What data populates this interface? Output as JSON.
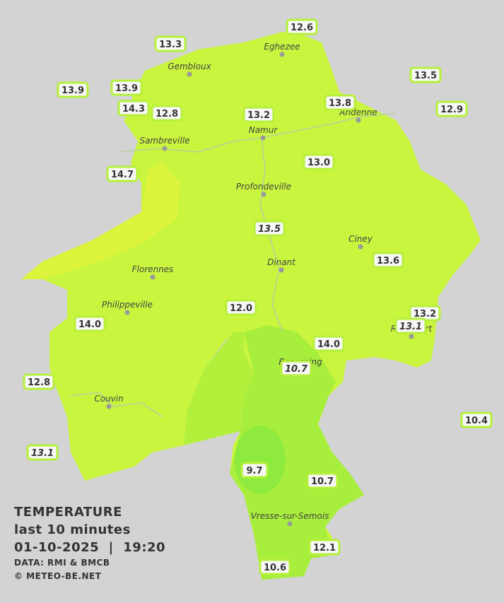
{
  "towns": [
    {
      "name": "Eghezee"
    },
    {
      "name": "Gembloux"
    },
    {
      "name": "Andenne"
    },
    {
      "name": "Namur"
    },
    {
      "name": "Sambreville"
    },
    {
      "name": "Profondeville"
    },
    {
      "name": "Ciney"
    },
    {
      "name": "Dinant"
    },
    {
      "name": "Florennes"
    },
    {
      "name": "Philippeville"
    },
    {
      "name": "Rochefort"
    },
    {
      "name": "Beauraing"
    },
    {
      "name": "Couvin"
    },
    {
      "name": "Vresse-sur-Semois"
    }
  ],
  "stations": [
    {
      "label": "12.6"
    },
    {
      "label": "13.3"
    },
    {
      "label": "13.5"
    },
    {
      "label": "13.9"
    },
    {
      "label": "13.9"
    },
    {
      "label": "14.3"
    },
    {
      "label": "12.8"
    },
    {
      "label": "13.2"
    },
    {
      "label": "13.8"
    },
    {
      "label": "12.9"
    },
    {
      "label": "13.0"
    },
    {
      "label": "14.7"
    },
    {
      "label": "13.5",
      "italic": true
    },
    {
      "label": "13.6"
    },
    {
      "label": "12.0"
    },
    {
      "label": "13.2"
    },
    {
      "label": "13.1",
      "italic": true
    },
    {
      "label": "14.0"
    },
    {
      "label": "14.0"
    },
    {
      "label": "10.7",
      "italic": true
    },
    {
      "label": "12.8"
    },
    {
      "label": "10.4"
    },
    {
      "label": "13.1",
      "italic": true
    },
    {
      "label": "9.7"
    },
    {
      "label": "10.7"
    },
    {
      "label": "12.1"
    },
    {
      "label": "10.6"
    }
  ],
  "legend": {
    "title": "TEMPERATURE",
    "period": "last 10 minutes",
    "datetime": "01-10-2025  |  19:20",
    "source": "DATA: RMI & BMCB",
    "credit": "© METEO-BE.NET"
  }
}
